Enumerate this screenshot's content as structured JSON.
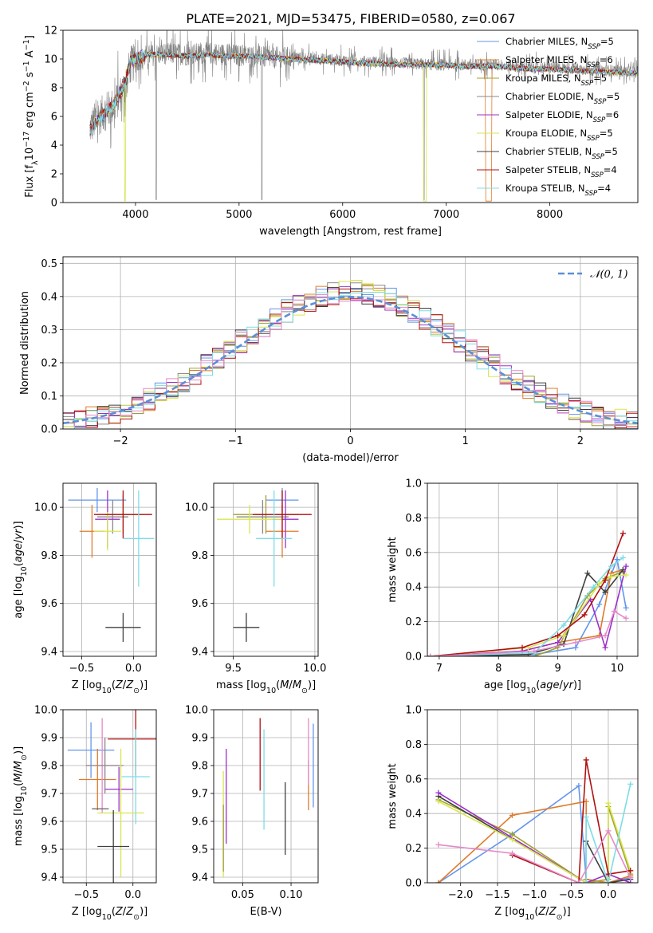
{
  "figure": {
    "title": "PLATE=2021, MJD=53475, FIBERID=0580, z=0.067"
  },
  "chart_data": [
    {
      "id": "spectrum",
      "type": "line",
      "xlabel": "wavelength [Angstrom, rest frame]",
      "ylabel": "Flux [f_λ 10^-17 erg cm^-2 s^-1 A^-1]",
      "xlim": [
        3300,
        8850
      ],
      "ylim": [
        0,
        12
      ],
      "xticks": [
        "4000",
        "5000",
        "6000",
        "7000",
        "8000"
      ],
      "yticks": [
        "0",
        "2",
        "4",
        "6",
        "8",
        "10",
        "12"
      ],
      "data_series": {
        "name": "",
        "color": "#808080",
        "x": [
          3560,
          3620,
          3700,
          3800,
          3900,
          3950,
          4000,
          4100,
          4200,
          4300,
          4500,
          4700,
          4900,
          5100,
          5300,
          5500,
          5800,
          6000,
          6300,
          6600,
          6900,
          7200,
          7500,
          7800,
          8000,
          8300,
          8600,
          8850
        ],
        "y": [
          5.2,
          5.8,
          6.3,
          6.8,
          8.2,
          9.6,
          9.8,
          10.2,
          10.3,
          10.4,
          10.3,
          10.4,
          10.3,
          10.2,
          10.1,
          10.1,
          10.0,
          9.9,
          9.8,
          9.7,
          9.6,
          9.6,
          9.6,
          9.4,
          9.4,
          9.3,
          9.2,
          9.1
        ]
      },
      "legend": [
        {
          "name": "Chabrier MILES, N",
          "sub": "SSP",
          "suffix": "=5",
          "color": "#6495ed"
        },
        {
          "name": "Salpeter MILES, N",
          "sub": "SSP",
          "suffix": "=6",
          "color": "#e07b2a"
        },
        {
          "name": "Kroupa MILES, N",
          "sub": "SSP",
          "suffix": "=5",
          "color": "#a0a030"
        },
        {
          "name": "Chabrier ELODIE, N",
          "sub": "SSP",
          "suffix": "=5",
          "color": "#8a8a8a"
        },
        {
          "name": "Salpeter ELODIE, N",
          "sub": "SSP",
          "suffix": "=6",
          "color": "#9b30c8"
        },
        {
          "name": "Kroupa ELODIE, N",
          "sub": "SSP",
          "suffix": "=5",
          "color": "#d8e650"
        },
        {
          "name": "Chabrier STELIB, N",
          "sub": "SSP",
          "suffix": "=5",
          "color": "#404040"
        },
        {
          "name": "Salpeter STELIB, N",
          "sub": "SSP",
          "suffix": "=4",
          "color": "#b01010"
        },
        {
          "name": "Kroupa STELIB, N",
          "sub": "SSP",
          "suffix": "=4",
          "color": "#7ddce6"
        }
      ],
      "model_x": [
        3560,
        3620,
        3700,
        3800,
        3900,
        3950,
        4000,
        4100,
        4200,
        4300,
        4500,
        4700,
        4900,
        5100,
        5300,
        5500,
        5800,
        6000,
        6300,
        6600,
        6900,
        7200,
        7500,
        7800,
        8000,
        8300,
        8600,
        8850
      ],
      "model_y": [
        5.0,
        5.6,
        6.2,
        6.9,
        8.4,
        9.8,
        10.0,
        10.3,
        10.3,
        10.3,
        10.2,
        10.3,
        10.2,
        10.2,
        10.1,
        10.0,
        9.9,
        9.8,
        9.7,
        9.6,
        9.6,
        9.5,
        9.5,
        9.3,
        9.3,
        9.2,
        9.1,
        9.0
      ]
    },
    {
      "id": "residuals",
      "type": "line",
      "xlabel": "(data-model)/error",
      "ylabel": "Normed distribution",
      "xlim": [
        -2.5,
        2.5
      ],
      "ylim": [
        0,
        0.52
      ],
      "xticks": [
        "−2",
        "−1",
        "0",
        "1",
        "2"
      ],
      "yticks": [
        "0.0",
        "0.1",
        "0.2",
        "0.3",
        "0.4",
        "0.5"
      ],
      "legend": [
        {
          "name": "𝒩(0, 1)",
          "color": "#5b8fd6"
        }
      ]
    },
    {
      "id": "age-vs-Z",
      "type": "scatter",
      "xlabel": "Z [log10(Z/Z⊙)]",
      "ylabel": "age [log10(age/yr)]",
      "xlim": [
        -0.68,
        0.22
      ],
      "ylim": [
        9.38,
        10.1
      ],
      "xticks": [
        "−0.5",
        "0.0"
      ],
      "yticks": [
        "9.4",
        "9.6",
        "9.8",
        "10.0"
      ],
      "points": [
        {
          "color": "#6495ed",
          "x": -0.35,
          "xerr": 0.28,
          "y": 10.03,
          "yerr": 0.05
        },
        {
          "color": "#e07b2a",
          "x": -0.4,
          "xerr": 0.12,
          "y": 9.9,
          "yerr": 0.11
        },
        {
          "color": "#a0a030",
          "x": -0.1,
          "xerr": 0.18,
          "y": 9.97,
          "yerr": 0.08
        },
        {
          "color": "#8a8a8a",
          "x": -0.2,
          "xerr": 0.15,
          "y": 9.96,
          "yerr": 0.07
        },
        {
          "color": "#9b30c8",
          "x": -0.25,
          "xerr": 0.12,
          "y": 9.95,
          "yerr": 0.12
        },
        {
          "color": "#d8e650",
          "x": -0.25,
          "xerr": 0.13,
          "y": 9.9,
          "yerr": 0.08
        },
        {
          "color": "#404040",
          "x": -0.1,
          "xerr": 0.17,
          "y": 9.5,
          "yerr": 0.06
        },
        {
          "color": "#b01010",
          "x": -0.1,
          "xerr": 0.28,
          "y": 9.97,
          "yerr": 0.1
        },
        {
          "color": "#7ddce6",
          "x": 0.05,
          "xerr": 0.15,
          "y": 9.87,
          "yerr": 0.2
        }
      ]
    },
    {
      "id": "age-vs-mass",
      "type": "scatter",
      "xlabel": "mass [log10(M/M⊙)]",
      "ylabel": "",
      "xlim": [
        9.38,
        10.02
      ],
      "ylim": [
        9.38,
        10.1
      ],
      "xticks": [
        "9.5",
        "10.0"
      ],
      "yticks": [
        "9.4",
        "9.6",
        "9.8",
        "10.0"
      ],
      "points": [
        {
          "color": "#6495ed",
          "x": 9.8,
          "xerr": 0.1,
          "y": 10.03,
          "yerr": 0.05
        },
        {
          "color": "#e07b2a",
          "x": 9.8,
          "xerr": 0.1,
          "y": 9.9,
          "yerr": 0.11
        },
        {
          "color": "#a0a030",
          "x": 9.7,
          "xerr": 0.2,
          "y": 9.97,
          "yerr": 0.08
        },
        {
          "color": "#8a8a8a",
          "x": 9.68,
          "xerr": 0.16,
          "y": 9.96,
          "yerr": 0.07
        },
        {
          "color": "#9b30c8",
          "x": 9.82,
          "xerr": 0.08,
          "y": 9.95,
          "yerr": 0.12
        },
        {
          "color": "#d8e650",
          "x": 9.6,
          "xerr": 0.2,
          "y": 9.95,
          "yerr": 0.06
        },
        {
          "color": "#404040",
          "x": 9.58,
          "xerr": 0.08,
          "y": 9.5,
          "yerr": 0.06
        },
        {
          "color": "#b01010",
          "x": 9.8,
          "xerr": 0.18,
          "y": 9.97,
          "yerr": 0.1
        },
        {
          "color": "#7ddce6",
          "x": 9.75,
          "xerr": 0.11,
          "y": 9.87,
          "yerr": 0.2
        }
      ]
    },
    {
      "id": "weight-vs-age",
      "type": "line",
      "xlabel": "age  [log10(age/yr)]",
      "ylabel": "mass weight",
      "xlim": [
        6.8,
        10.35
      ],
      "ylim": [
        0,
        1
      ],
      "xticks": [
        "7",
        "8",
        "9",
        "10"
      ],
      "yticks": [
        "0.0",
        "0.2",
        "0.4",
        "0.6",
        "0.8",
        "1.0"
      ],
      "series": [
        {
          "color": "#6495ed",
          "x": [
            6.85,
            8.6,
            9.3,
            9.7,
            10.0,
            10.15
          ],
          "y": [
            0.0,
            0.01,
            0.05,
            0.3,
            0.56,
            0.28
          ]
        },
        {
          "color": "#e07b2a",
          "x": [
            6.85,
            8.4,
            9.0,
            9.7,
            9.9,
            10.1
          ],
          "y": [
            0.0,
            0.03,
            0.08,
            0.12,
            0.48,
            0.5
          ]
        },
        {
          "color": "#a0a030",
          "x": [
            6.85,
            8.6,
            9.0,
            9.5,
            9.8,
            10.1
          ],
          "y": [
            0.0,
            0.0,
            0.05,
            0.35,
            0.45,
            0.49
          ]
        },
        {
          "color": "#404040",
          "x": [
            6.85,
            8.5,
            9.1,
            9.5,
            9.8,
            10.1
          ],
          "y": [
            0.0,
            0.01,
            0.07,
            0.48,
            0.37,
            0.5
          ]
        },
        {
          "color": "#9b30c8",
          "x": [
            6.85,
            8.4,
            9.0,
            9.55,
            9.8,
            10.15
          ],
          "y": [
            0.0,
            0.03,
            0.08,
            0.33,
            0.05,
            0.52
          ]
        },
        {
          "color": "#d8e650",
          "x": [
            6.85,
            8.5,
            9.1,
            9.7,
            9.9,
            10.15
          ],
          "y": [
            0.0,
            0.05,
            0.12,
            0.42,
            0.46,
            0.47
          ]
        },
        {
          "color": "#b01010",
          "x": [
            6.85,
            8.4,
            9.0,
            9.45,
            9.8,
            10.1
          ],
          "y": [
            0.0,
            0.05,
            0.12,
            0.24,
            0.44,
            0.71
          ]
        },
        {
          "color": "#7ddce6",
          "x": [
            6.85,
            8.6,
            9.1,
            9.6,
            9.9,
            10.1
          ],
          "y": [
            0.0,
            0.02,
            0.18,
            0.4,
            0.52,
            0.57
          ]
        },
        {
          "color": "#e58ac9",
          "x": [
            6.85,
            8.6,
            9.3,
            9.8,
            9.95,
            10.15
          ],
          "y": [
            0.0,
            0.03,
            0.08,
            0.12,
            0.26,
            0.22
          ]
        }
      ]
    },
    {
      "id": "mass-vs-Z",
      "type": "scatter",
      "xlabel": "Z [log10(Z/Z⊙)]",
      "ylabel": "mass [log10(M/M⊙)]",
      "xlim": [
        -0.75,
        0.25
      ],
      "ylim": [
        9.38,
        10.0
      ],
      "xticks": [
        "−0.5",
        "0.0"
      ],
      "yticks": [
        "9.4",
        "9.5",
        "9.6",
        "9.7",
        "9.8",
        "9.9",
        "10.0"
      ],
      "points": [
        {
          "color": "#6495ed",
          "x": -0.45,
          "xerr": 0.25,
          "y": 9.855,
          "yerr": 0.1
        },
        {
          "color": "#e07b2a",
          "x": -0.38,
          "xerr": 0.2,
          "y": 9.75,
          "yerr": 0.11
        },
        {
          "color": "#e58ac9",
          "x": -0.33,
          "xerr": 0.18,
          "y": 9.8,
          "yerr": 0.17
        },
        {
          "color": "#8a8a8a",
          "x": -0.3,
          "xerr": 0.2,
          "y": 9.8,
          "yerr": 0.1
        },
        {
          "color": "#9b30c8",
          "x": -0.15,
          "xerr": 0.15,
          "y": 9.715,
          "yerr": 0.08
        },
        {
          "color": "#d8e650",
          "x": -0.13,
          "xerr": 0.25,
          "y": 9.63,
          "yerr": 0.23
        },
        {
          "color": "#404040",
          "x": -0.21,
          "xerr": 0.17,
          "y": 9.51,
          "yerr": 0.13
        },
        {
          "color": "#b01010",
          "x": 0.03,
          "xerr": 0.3,
          "y": 9.895,
          "yerr": 0.13
        },
        {
          "color": "#7ddce6",
          "x": 0.03,
          "xerr": 0.15,
          "y": 9.76,
          "yerr": 0.17
        },
        {
          "color": "#606060",
          "x": -0.35,
          "xerr": 0.09,
          "y": 9.645,
          "yerr": 0.0
        }
      ]
    },
    {
      "id": "mass-vs-ebv",
      "type": "scatter",
      "xlabel": "E(B-V)",
      "ylabel": "",
      "xlim": [
        0.02,
        0.128
      ],
      "ylim": [
        9.38,
        10.0
      ],
      "xticks": [
        "0.05",
        "0.10"
      ],
      "yticks": [
        "9.4",
        "9.5",
        "9.6",
        "9.7",
        "9.8",
        "9.9",
        "10.0"
      ],
      "points": [
        {
          "color": "#6495ed",
          "x": 0.123,
          "y": 9.8,
          "yerr": 0.15
        },
        {
          "color": "#e07b2a",
          "x": 0.118,
          "y": 9.73,
          "yerr": 0.09
        },
        {
          "color": "#e58ac9",
          "x": 0.118,
          "y": 9.85,
          "yerr": 0.12
        },
        {
          "color": "#9b30c8",
          "x": 0.033,
          "y": 9.69,
          "yerr": 0.17
        },
        {
          "color": "#d8e650",
          "x": 0.03,
          "y": 9.59,
          "yerr": 0.19
        },
        {
          "color": "#a0a030",
          "x": 0.03,
          "y": 9.54,
          "yerr": 0.12
        },
        {
          "color": "#404040",
          "x": 0.094,
          "y": 9.61,
          "yerr": 0.13
        },
        {
          "color": "#b01010",
          "x": 0.068,
          "y": 9.84,
          "yerr": 0.13
        },
        {
          "color": "#7ddce6",
          "x": 0.072,
          "y": 9.75,
          "yerr": 0.18
        }
      ]
    },
    {
      "id": "weight-vs-Z",
      "type": "line",
      "xlabel": "Z [log10(Z/Z⊙)]",
      "ylabel": "mass weight",
      "xlim": [
        -2.45,
        0.4
      ],
      "ylim": [
        0,
        1
      ],
      "xticks": [
        "−2.0",
        "−1.5",
        "−1.0",
        "−0.5",
        "0.0"
      ],
      "yticks": [
        "0.0",
        "0.2",
        "0.4",
        "0.6",
        "0.8",
        "1.0"
      ],
      "series": [
        {
          "color": "#6495ed",
          "x": [
            -2.3,
            -1.3,
            -0.4,
            -0.3,
            0.0,
            0.3
          ],
          "y": [
            0.0,
            0.28,
            0.56,
            0.02,
            0.0,
            0.03
          ]
        },
        {
          "color": "#e07b2a",
          "x": [
            -2.3,
            -1.3,
            -0.3,
            -0.3,
            0.0,
            0.3
          ],
          "y": [
            0.0,
            0.39,
            0.47,
            0.02,
            0.0,
            0.04
          ]
        },
        {
          "color": "#a0a030",
          "x": [
            -2.3,
            -1.3,
            -0.3,
            0.0,
            0.0,
            0.3
          ],
          "y": [
            0.48,
            0.28,
            0.0,
            0.02,
            0.44,
            0.05
          ]
        },
        {
          "color": "#404040",
          "x": [
            -2.3,
            -0.3,
            -0.3,
            0.0,
            0.3
          ],
          "y": [
            0.5,
            0.0,
            0.24,
            0.0,
            0.02
          ]
        },
        {
          "color": "#9b30c8",
          "x": [
            -2.3,
            -0.3,
            0.0,
            0.3
          ],
          "y": [
            0.52,
            0.0,
            0.05,
            0.0
          ]
        },
        {
          "color": "#d8e650",
          "x": [
            -2.3,
            -1.3,
            -0.3,
            0.0,
            0.0,
            0.3
          ],
          "y": [
            0.47,
            0.25,
            0.0,
            0.0,
            0.46,
            0.07
          ]
        },
        {
          "color": "#b01010",
          "x": [
            -1.3,
            -0.4,
            -0.3,
            0.0,
            0.3
          ],
          "y": [
            0.16,
            0.0,
            0.71,
            0.05,
            0.07
          ]
        },
        {
          "color": "#7ddce6",
          "x": [
            -0.3,
            -0.3,
            0.0,
            0.3
          ],
          "y": [
            0.0,
            0.38,
            0.0,
            0.57
          ]
        },
        {
          "color": "#e58ac9",
          "x": [
            -2.3,
            -1.3,
            -0.4,
            0.0,
            0.3
          ],
          "y": [
            0.22,
            0.17,
            0.0,
            0.3,
            0.03
          ]
        }
      ]
    }
  ]
}
